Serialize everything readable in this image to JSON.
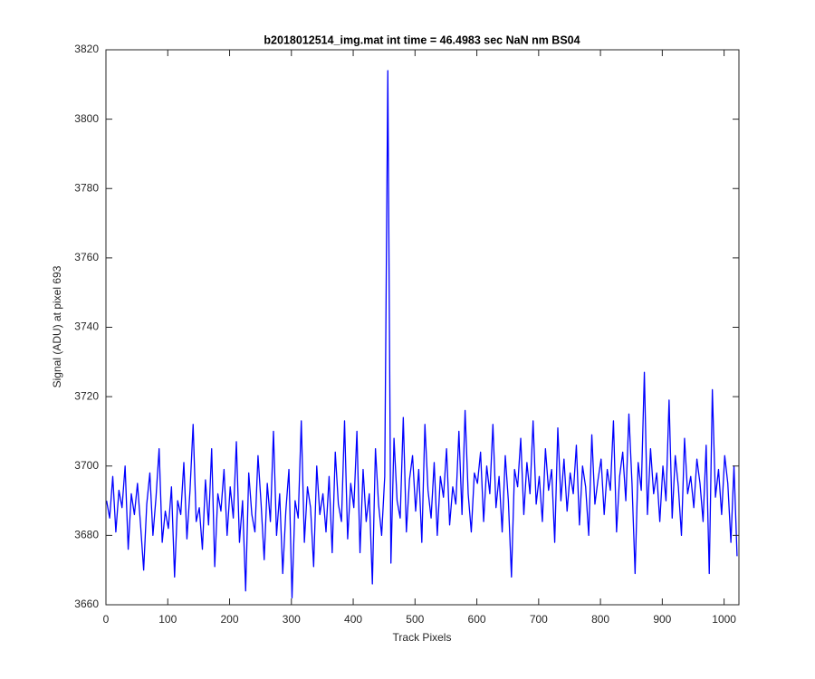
{
  "chart_data": {
    "type": "line",
    "title": "b2018012514_img.mat int time = 46.4983 sec  NaN nm BS04",
    "xlabel": "Track Pixels",
    "ylabel": "Signal (ADU) at pixel 693",
    "xlim": [
      0,
      1024
    ],
    "ylim": [
      3660,
      3820
    ],
    "xticks": [
      0,
      100,
      200,
      300,
      400,
      500,
      600,
      700,
      800,
      900,
      1000
    ],
    "yticks": [
      3660,
      3680,
      3700,
      3720,
      3740,
      3760,
      3780,
      3800,
      3820
    ],
    "grid": false,
    "x": [
      1,
      6,
      11,
      16,
      21,
      26,
      31,
      36,
      41,
      46,
      51,
      56,
      61,
      66,
      71,
      76,
      81,
      86,
      91,
      96,
      101,
      106,
      111,
      116,
      121,
      126,
      131,
      136,
      141,
      146,
      151,
      156,
      161,
      166,
      171,
      176,
      181,
      186,
      191,
      196,
      201,
      206,
      211,
      216,
      221,
      226,
      231,
      236,
      241,
      246,
      251,
      256,
      261,
      266,
      271,
      276,
      281,
      286,
      291,
      296,
      301,
      306,
      311,
      316,
      321,
      326,
      331,
      336,
      341,
      346,
      351,
      356,
      361,
      366,
      371,
      376,
      381,
      386,
      391,
      396,
      401,
      406,
      411,
      416,
      421,
      426,
      431,
      436,
      441,
      446,
      451,
      456,
      461,
      466,
      471,
      476,
      481,
      486,
      491,
      496,
      501,
      506,
      511,
      516,
      521,
      526,
      531,
      536,
      541,
      546,
      551,
      556,
      561,
      566,
      571,
      576,
      581,
      586,
      591,
      596,
      601,
      606,
      611,
      616,
      621,
      626,
      631,
      636,
      641,
      646,
      651,
      656,
      661,
      666,
      671,
      676,
      681,
      686,
      691,
      696,
      701,
      706,
      711,
      716,
      721,
      726,
      731,
      736,
      741,
      746,
      751,
      756,
      761,
      766,
      771,
      776,
      781,
      786,
      791,
      796,
      801,
      806,
      811,
      816,
      821,
      826,
      831,
      836,
      841,
      846,
      851,
      856,
      861,
      866,
      871,
      876,
      881,
      886,
      891,
      896,
      901,
      906,
      911,
      916,
      921,
      926,
      931,
      936,
      941,
      946,
      951,
      956,
      961,
      966,
      971,
      976,
      981,
      986,
      991,
      996,
      1001,
      1006,
      1011,
      1016,
      1021
    ],
    "series": [
      {
        "name": "signal",
        "color": "#0000ff",
        "values": [
          3690,
          3685,
          3697,
          3681,
          3693,
          3688,
          3700,
          3676,
          3692,
          3686,
          3695,
          3683,
          3670,
          3689,
          3698,
          3680,
          3691,
          3705,
          3678,
          3687,
          3682,
          3694,
          3668,
          3690,
          3686,
          3701,
          3679,
          3693,
          3712,
          3684,
          3688,
          3676,
          3696,
          3683,
          3705,
          3671,
          3692,
          3687,
          3699,
          3680,
          3694,
          3685,
          3707,
          3678,
          3690,
          3664,
          3698,
          3686,
          3681,
          3703,
          3689,
          3673,
          3695,
          3684,
          3710,
          3680,
          3692,
          3669,
          3687,
          3699,
          3662,
          3690,
          3685,
          3713,
          3678,
          3694,
          3688,
          3671,
          3700,
          3686,
          3692,
          3681,
          3697,
          3675,
          3704,
          3689,
          3684,
          3713,
          3679,
          3695,
          3688,
          3710,
          3675,
          3699,
          3684,
          3692,
          3666,
          3705,
          3689,
          3680,
          3697,
          3814,
          3672,
          3708,
          3690,
          3685,
          3714,
          3681,
          3696,
          3703,
          3687,
          3699,
          3678,
          3712,
          3693,
          3685,
          3701,
          3680,
          3697,
          3691,
          3705,
          3683,
          3694,
          3689,
          3710,
          3686,
          3716,
          3692,
          3681,
          3698,
          3695,
          3704,
          3684,
          3700,
          3692,
          3712,
          3688,
          3697,
          3681,
          3703,
          3690,
          3668,
          3699,
          3694,
          3708,
          3686,
          3701,
          3692,
          3713,
          3689,
          3697,
          3684,
          3705,
          3693,
          3699,
          3678,
          3711,
          3690,
          3702,
          3687,
          3698,
          3692,
          3706,
          3683,
          3700,
          3694,
          3680,
          3709,
          3689,
          3696,
          3702,
          3686,
          3699,
          3693,
          3713,
          3681,
          3697,
          3704,
          3690,
          3715,
          3695,
          3669,
          3701,
          3693,
          3727,
          3686,
          3705,
          3692,
          3698,
          3684,
          3700,
          3690,
          3719,
          3685,
          3703,
          3694,
          3680,
          3708,
          3692,
          3697,
          3688,
          3702,
          3695,
          3684,
          3706,
          3669,
          3722,
          3691,
          3699,
          3686,
          3703,
          3695,
          3678,
          3700,
          3674
        ]
      }
    ]
  }
}
